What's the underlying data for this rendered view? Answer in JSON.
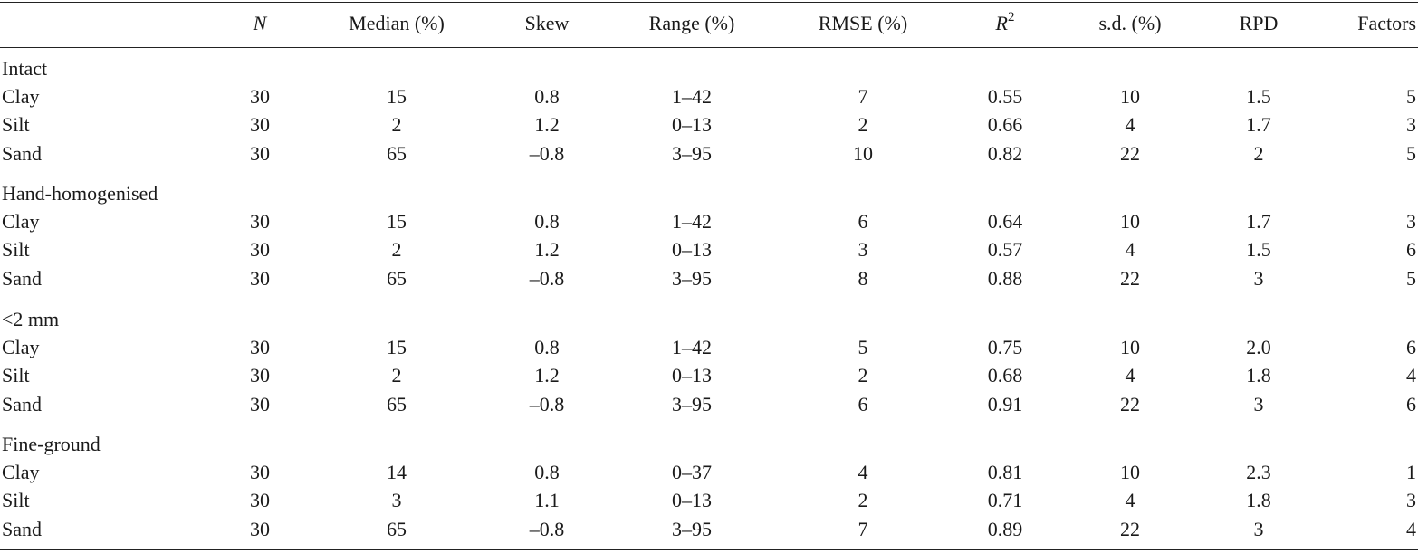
{
  "table": {
    "headers": [
      "",
      "N",
      "Median (%)",
      "Skew",
      "Range (%)",
      "RMSE (%)",
      "R",
      "s.d. (%)",
      "RPD",
      "Factors"
    ],
    "r2_superscript": "2",
    "groups": [
      {
        "label": "Intact",
        "rows": [
          [
            "Clay",
            "30",
            "15",
            "0.8",
            "1–42",
            "7",
            "0.55",
            "10",
            "1.5",
            "5"
          ],
          [
            "Silt",
            "30",
            "2",
            "1.2",
            "0–13",
            "2",
            "0.66",
            "4",
            "1.7",
            "3"
          ],
          [
            "Sand",
            "30",
            "65",
            "–0.8",
            "3–95",
            "10",
            "0.82",
            "22",
            "2",
            "5"
          ]
        ]
      },
      {
        "label": "Hand-homogenised",
        "rows": [
          [
            "Clay",
            "30",
            "15",
            "0.8",
            "1–42",
            "6",
            "0.64",
            "10",
            "1.7",
            "3"
          ],
          [
            "Silt",
            "30",
            "2",
            "1.2",
            "0–13",
            "3",
            "0.57",
            "4",
            "1.5",
            "6"
          ],
          [
            "Sand",
            "30",
            "65",
            "–0.8",
            "3–95",
            "8",
            "0.88",
            "22",
            "3",
            "5"
          ]
        ]
      },
      {
        "label": "<2 mm",
        "rows": [
          [
            "Clay",
            "30",
            "15",
            "0.8",
            "1–42",
            "5",
            "0.75",
            "10",
            "2.0",
            "6"
          ],
          [
            "Silt",
            "30",
            "2",
            "1.2",
            "0–13",
            "2",
            "0.68",
            "4",
            "1.8",
            "4"
          ],
          [
            "Sand",
            "30",
            "65",
            "–0.8",
            "3–95",
            "6",
            "0.91",
            "22",
            "3",
            "6"
          ]
        ]
      },
      {
        "label": "Fine-ground",
        "rows": [
          [
            "Clay",
            "30",
            "14",
            "0.8",
            "0–37",
            "4",
            "0.81",
            "10",
            "2.3",
            "1"
          ],
          [
            "Silt",
            "30",
            "3",
            "1.1",
            "0–13",
            "2",
            "0.71",
            "4",
            "1.8",
            "3"
          ],
          [
            "Sand",
            "30",
            "65",
            "–0.8",
            "3–95",
            "7",
            "0.89",
            "22",
            "3",
            "4"
          ]
        ]
      }
    ]
  }
}
